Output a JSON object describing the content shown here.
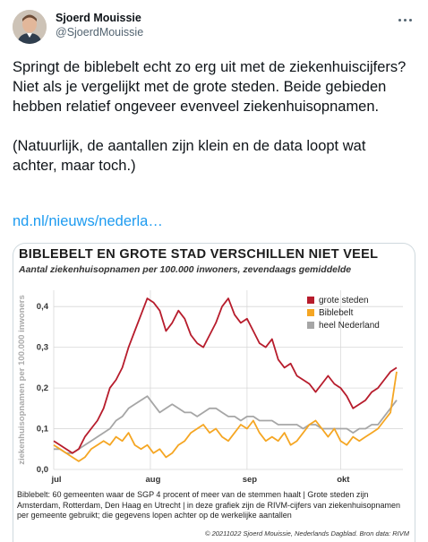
{
  "author": {
    "name": "Sjoerd Mouissie",
    "handle": "@SjoerdMouissie"
  },
  "tweet": {
    "paragraph_1": "Springt de biblebelt echt zo erg uit met de ziekenhuiscijfers? Niet als je vergelijkt met de grote steden. Beide gebieden hebben relatief ongeveer evenveel ziekenhuisopnamen.",
    "paragraph_2": "(Natuurlijk, de aantallen zijn klein en de data loopt wat achter, maar toch.)",
    "link": "nd.nl/nieuws/nederla…"
  },
  "chart_data": {
    "type": "line",
    "title": "BIBLEBELT EN GROTE STAD VERSCHILLEN NIET VEEL",
    "subtitle": "Aantal ziekenhuisopnamen per 100.000 inwoners, zevendaags gemiddelde",
    "ylabel": "ziekenhuisopnamen per 100.000 inwoners",
    "xlabel": "",
    "x_ticks": [
      "jul",
      "aug",
      "sep",
      "okt"
    ],
    "x_tick_days": [
      0,
      31,
      62,
      92
    ],
    "ylim": [
      0,
      0.44
    ],
    "y_ticks": [
      0.0,
      0.1,
      0.2,
      0.3,
      0.4
    ],
    "y_tick_labels": [
      "0,0",
      "0,1",
      "0,2",
      "0,3",
      "0,4"
    ],
    "grid": true,
    "legend_position": "top-right",
    "x_unit": "days from 1 July",
    "series": [
      {
        "name": "grote steden",
        "color": "#b71c2c",
        "x": [
          0,
          2,
          4,
          6,
          8,
          10,
          12,
          14,
          16,
          18,
          20,
          22,
          24,
          26,
          28,
          30,
          32,
          34,
          36,
          38,
          40,
          42,
          44,
          46,
          48,
          50,
          52,
          54,
          56,
          58,
          60,
          62,
          64,
          66,
          68,
          70,
          72,
          74,
          76,
          78,
          80,
          82,
          84,
          86,
          88,
          90,
          92,
          94,
          96,
          98,
          100,
          102,
          104,
          106,
          108,
          110
        ],
        "values": [
          0.07,
          0.06,
          0.05,
          0.04,
          0.05,
          0.08,
          0.1,
          0.12,
          0.15,
          0.2,
          0.22,
          0.25,
          0.3,
          0.34,
          0.38,
          0.42,
          0.41,
          0.39,
          0.34,
          0.36,
          0.39,
          0.37,
          0.33,
          0.31,
          0.3,
          0.33,
          0.36,
          0.4,
          0.42,
          0.38,
          0.36,
          0.37,
          0.34,
          0.31,
          0.3,
          0.32,
          0.27,
          0.25,
          0.26,
          0.23,
          0.22,
          0.21,
          0.19,
          0.21,
          0.23,
          0.21,
          0.2,
          0.18,
          0.15,
          0.16,
          0.17,
          0.19,
          0.2,
          0.22,
          0.24,
          0.25
        ]
      },
      {
        "name": "Biblebelt",
        "color": "#f5a623",
        "x": [
          0,
          2,
          4,
          6,
          8,
          10,
          12,
          14,
          16,
          18,
          20,
          22,
          24,
          26,
          28,
          30,
          32,
          34,
          36,
          38,
          40,
          42,
          44,
          46,
          48,
          50,
          52,
          54,
          56,
          58,
          60,
          62,
          64,
          66,
          68,
          70,
          72,
          74,
          76,
          78,
          80,
          82,
          84,
          86,
          88,
          90,
          92,
          94,
          96,
          98,
          100,
          102,
          104,
          106,
          108,
          110
        ],
        "values": [
          0.06,
          0.05,
          0.04,
          0.03,
          0.02,
          0.03,
          0.05,
          0.06,
          0.07,
          0.06,
          0.08,
          0.07,
          0.09,
          0.06,
          0.05,
          0.06,
          0.04,
          0.05,
          0.03,
          0.04,
          0.06,
          0.07,
          0.09,
          0.1,
          0.11,
          0.09,
          0.1,
          0.08,
          0.07,
          0.09,
          0.11,
          0.1,
          0.12,
          0.09,
          0.07,
          0.08,
          0.07,
          0.09,
          0.06,
          0.07,
          0.09,
          0.11,
          0.12,
          0.1,
          0.08,
          0.1,
          0.07,
          0.06,
          0.08,
          0.07,
          0.08,
          0.09,
          0.1,
          0.12,
          0.14,
          0.24
        ]
      },
      {
        "name": "heel Nederland",
        "color": "#a6a6a6",
        "x": [
          0,
          2,
          4,
          6,
          8,
          10,
          12,
          14,
          16,
          18,
          20,
          22,
          24,
          26,
          28,
          30,
          32,
          34,
          36,
          38,
          40,
          42,
          44,
          46,
          48,
          50,
          52,
          54,
          56,
          58,
          60,
          62,
          64,
          66,
          68,
          70,
          72,
          74,
          76,
          78,
          80,
          82,
          84,
          86,
          88,
          90,
          92,
          94,
          96,
          98,
          100,
          102,
          104,
          106,
          108,
          110
        ],
        "values": [
          0.05,
          0.05,
          0.04,
          0.04,
          0.05,
          0.06,
          0.07,
          0.08,
          0.09,
          0.1,
          0.12,
          0.13,
          0.15,
          0.16,
          0.17,
          0.18,
          0.16,
          0.14,
          0.15,
          0.16,
          0.15,
          0.14,
          0.14,
          0.13,
          0.14,
          0.15,
          0.15,
          0.14,
          0.13,
          0.13,
          0.12,
          0.13,
          0.13,
          0.12,
          0.12,
          0.12,
          0.11,
          0.11,
          0.11,
          0.11,
          0.1,
          0.11,
          0.11,
          0.1,
          0.1,
          0.1,
          0.1,
          0.1,
          0.09,
          0.1,
          0.1,
          0.11,
          0.11,
          0.13,
          0.15,
          0.17
        ]
      }
    ]
  },
  "chart_note": "Biblebelt: 60 gemeenten waar de SGP 4 procent of meer van de stemmen haalt | Grote steden zijn Amsterdam, Rotterdam, Den Haag en Utrecht | in deze grafiek zijn de RIVM-cijfers van ziekenhuis­opnamen per gemeente gebruikt; die gegevens lopen achter op de werkelijke aantallen",
  "chart_credit": "© 20211022 Sjoerd Mouissie, Nederlands Dagblad. Bron data: RIVM",
  "colors": {
    "link": "#1d9bf0",
    "text": "#0f1419",
    "muted": "#536471"
  },
  "icons": {
    "more": "more-horizontal-icon"
  }
}
